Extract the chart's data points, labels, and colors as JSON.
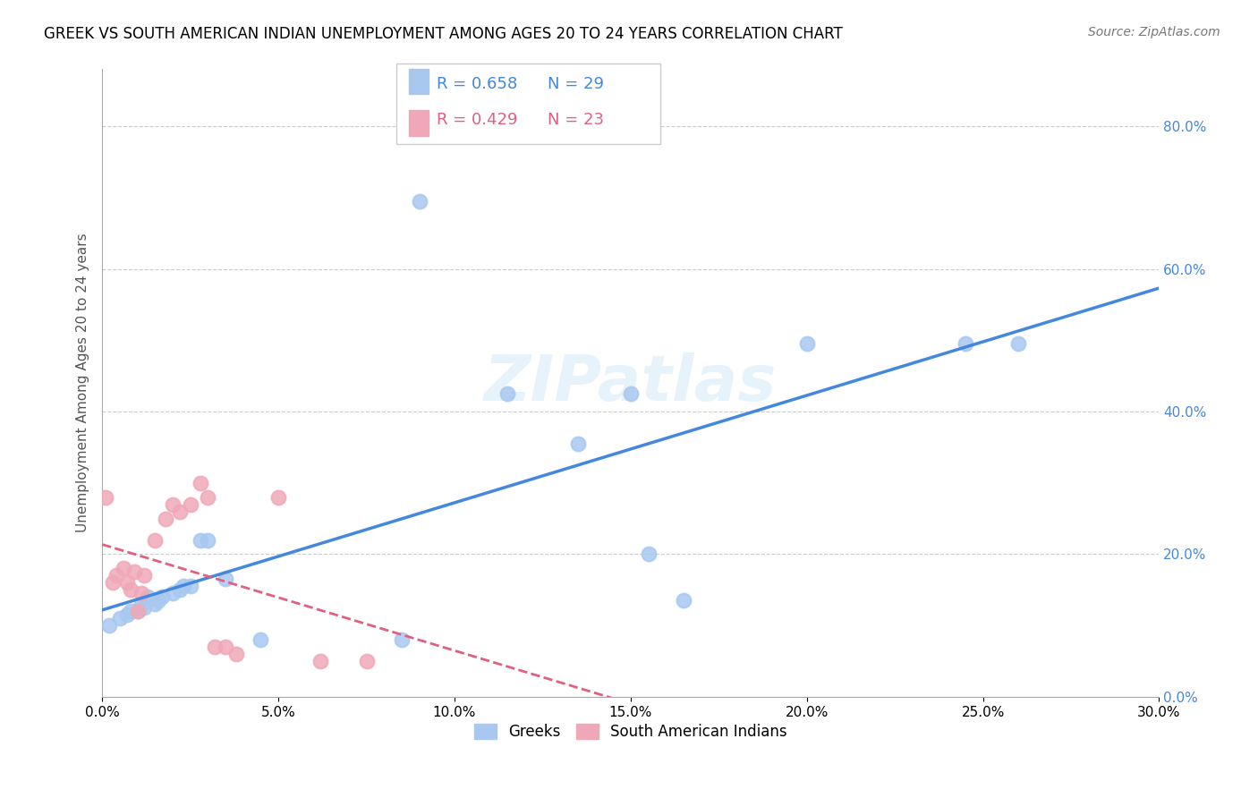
{
  "title": "GREEK VS SOUTH AMERICAN INDIAN UNEMPLOYMENT AMONG AGES 20 TO 24 YEARS CORRELATION CHART",
  "source": "Source: ZipAtlas.com",
  "ylabel": "Unemployment Among Ages 20 to 24 years",
  "xlim": [
    0.0,
    0.3
  ],
  "ylim": [
    0.0,
    0.88
  ],
  "xticks": [
    0.0,
    0.05,
    0.1,
    0.15,
    0.2,
    0.25,
    0.3
  ],
  "yticks_right": [
    0.0,
    0.2,
    0.4,
    0.6,
    0.8
  ],
  "greek_R": 0.658,
  "greek_N": 29,
  "sai_R": 0.429,
  "sai_N": 23,
  "greek_color": "#a8c8f0",
  "greek_line_color": "#4488dd",
  "sai_color": "#f0a8b8",
  "sai_line_color": "#e06080",
  "watermark": "ZIPatlas",
  "greek_x": [
    0.002,
    0.005,
    0.007,
    0.008,
    0.01,
    0.011,
    0.012,
    0.013,
    0.015,
    0.016,
    0.017,
    0.02,
    0.022,
    0.023,
    0.025,
    0.028,
    0.03,
    0.035,
    0.045,
    0.085,
    0.09,
    0.115,
    0.135,
    0.15,
    0.155,
    0.165,
    0.2,
    0.245,
    0.26
  ],
  "greek_y": [
    0.1,
    0.11,
    0.115,
    0.12,
    0.12,
    0.13,
    0.125,
    0.14,
    0.13,
    0.135,
    0.14,
    0.145,
    0.15,
    0.155,
    0.155,
    0.22,
    0.22,
    0.165,
    0.08,
    0.08,
    0.695,
    0.425,
    0.355,
    0.425,
    0.2,
    0.135,
    0.495,
    0.495,
    0.495
  ],
  "sai_x": [
    0.001,
    0.003,
    0.004,
    0.006,
    0.007,
    0.008,
    0.009,
    0.01,
    0.011,
    0.012,
    0.015,
    0.018,
    0.02,
    0.022,
    0.025,
    0.028,
    0.03,
    0.032,
    0.035,
    0.038,
    0.05,
    0.062,
    0.075
  ],
  "sai_y": [
    0.28,
    0.16,
    0.17,
    0.18,
    0.16,
    0.15,
    0.175,
    0.12,
    0.145,
    0.17,
    0.22,
    0.25,
    0.27,
    0.26,
    0.27,
    0.3,
    0.28,
    0.07,
    0.07,
    0.06,
    0.28,
    0.05,
    0.05
  ]
}
